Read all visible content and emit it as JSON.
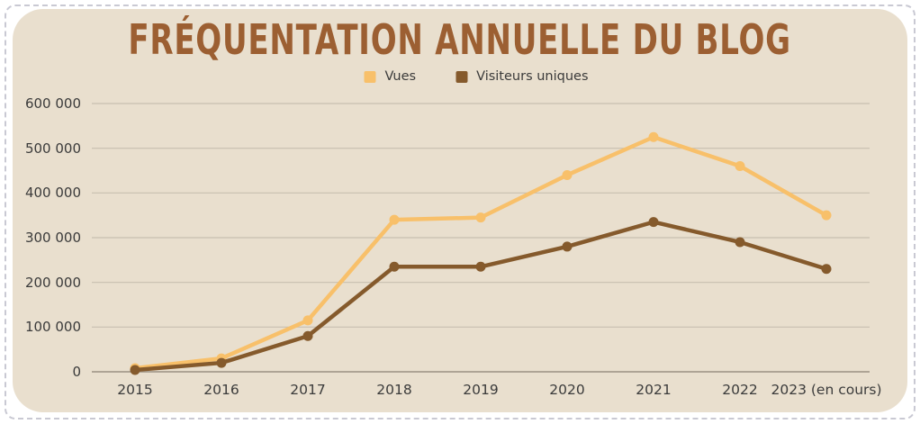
{
  "chart_data": {
    "type": "line",
    "title": "FRÉQUENTATION ANNUELLE DU BLOG",
    "categories": [
      "2015",
      "2016",
      "2017",
      "2018",
      "2019",
      "2020",
      "2021",
      "2022",
      "2023 (en cours)"
    ],
    "series": [
      {
        "name": "Vues",
        "color": "#F8C06A",
        "values": [
          8000,
          30000,
          115000,
          340000,
          345000,
          440000,
          525000,
          460000,
          350000
        ]
      },
      {
        "name": "Visiteurs uniques",
        "color": "#855A2C",
        "values": [
          4000,
          20000,
          80000,
          235000,
          235000,
          280000,
          335000,
          290000,
          230000
        ]
      }
    ],
    "xlabel": "",
    "ylabel": "",
    "ylim": [
      0,
      600000
    ],
    "ytick_step": 100000,
    "ytick_labels": [
      "0",
      "100 000",
      "200 000",
      "300 000",
      "400 000",
      "500 000",
      "600 000"
    ],
    "grid": true,
    "legend_position": "top-center"
  },
  "colors": {
    "page": "#FFFFFF",
    "background": "#E9DFCE",
    "grid": "#C8BFB0",
    "axis_zero": "#A59C8D",
    "text": "#3B3B3B",
    "title": "#9C5F32",
    "stitch": "#C9C9D3"
  }
}
